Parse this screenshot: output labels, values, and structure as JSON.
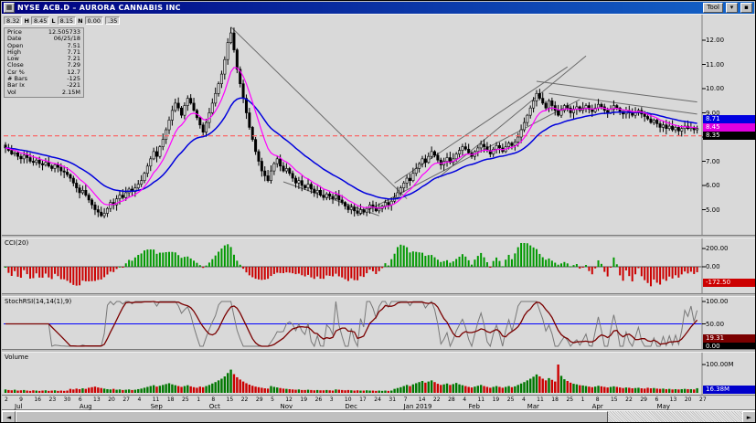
{
  "window": {
    "title": "NYSE ACB.D – AURORA CANNABIS INC",
    "buttons": [
      "Tool",
      "▾",
      "▪"
    ],
    "app_icon": "▦"
  },
  "quote_strip": {
    "cells": [
      {
        "t": "8.32",
        "box": true
      },
      {
        "t": "H",
        "box": false
      },
      {
        "t": "8.45",
        "box": true
      },
      {
        "t": "L",
        "box": false
      },
      {
        "t": "8.15",
        "box": true
      },
      {
        "t": "N",
        "box": false
      },
      {
        "t": "0.00",
        "box": true
      },
      {
        "t": ".35",
        "box": true
      }
    ]
  },
  "info_panel": {
    "rows": [
      [
        "Price",
        "12.505733"
      ],
      [
        "Date",
        "06/25/18"
      ],
      [
        "Open",
        "7.51"
      ],
      [
        "High",
        "7.71"
      ],
      [
        "Low",
        "7.21"
      ],
      [
        "Close",
        "7.29"
      ],
      [
        "Csr %",
        "12.7"
      ],
      [
        "# Bars",
        "-125"
      ],
      [
        "Bar Ix",
        "-221"
      ],
      [
        "Vol",
        "2.15M"
      ]
    ]
  },
  "panels": {
    "price": {
      "axis_labels": [
        {
          "v": 12,
          "t": "12.00"
        },
        {
          "v": 11,
          "t": "11.00"
        },
        {
          "v": 10,
          "t": "10.00"
        },
        {
          "v": 9,
          "t": "9.00"
        },
        {
          "v": 8,
          "t": "8.00"
        },
        {
          "v": 7,
          "t": "7.00"
        },
        {
          "v": 6,
          "t": "6.00"
        },
        {
          "v": 5,
          "t": "5.00"
        }
      ],
      "boxes": [
        {
          "v": 8.71,
          "t": "8.71",
          "bg": "#0000e0",
          "fg": "#ffffff"
        },
        {
          "v": 8.45,
          "t": "8.45",
          "bg": "#e000e0",
          "fg": "#ffffff"
        },
        {
          "v": 8.35,
          "t": "8.35",
          "bg": "#000000",
          "fg": "#ffffff"
        }
      ]
    },
    "cci": {
      "label": "CCI(20)",
      "axis_labels": [
        {
          "v": 200,
          "t": "200.00"
        },
        {
          "v": 0,
          "t": "0.00"
        }
      ],
      "boxes": [
        {
          "v": -172.5,
          "t": "-172.50",
          "bg": "#cc0000",
          "fg": "#ffffff"
        }
      ]
    },
    "stochrsi": {
      "label": "StochRSI(14,14(1),9)",
      "axis_labels": [
        {
          "v": 100,
          "t": "100.00"
        },
        {
          "v": 50,
          "t": "50.00"
        }
      ],
      "boxes": [
        {
          "v": 19.31,
          "t": "19.31",
          "bg": "#7a0000",
          "fg": "#ffffff"
        },
        {
          "v": 0,
          "t": "0.00",
          "bg": "#000000",
          "fg": "#ffffff"
        }
      ]
    },
    "volume": {
      "label": "Volume",
      "axis_labels": [
        {
          "v": 100,
          "t": "100.00M"
        }
      ],
      "boxes": [
        {
          "t": "16.38M",
          "bg": "#0000cc",
          "fg": "#ffffff"
        }
      ]
    }
  },
  "xaxis": {
    "weeks": [
      "2",
      "9",
      "16",
      "23",
      "30",
      "6",
      "13",
      "20",
      "27",
      "4",
      "11",
      "18",
      "25",
      "1",
      "8",
      "15",
      "22",
      "29",
      "5",
      "12",
      "19",
      "26",
      "3",
      "10",
      "17",
      "24",
      "31",
      "7",
      "14",
      "22",
      "28",
      "4",
      "11",
      "19",
      "25",
      "4",
      "11",
      "18",
      "25",
      "1",
      "8",
      "15",
      "22",
      "29",
      "6",
      "13",
      "20",
      "27"
    ],
    "months": [
      {
        "label": "Jul",
        "i": 0
      },
      {
        "label": "Aug",
        "i": 21
      },
      {
        "label": "Sep",
        "i": 44
      },
      {
        "label": "Oct",
        "i": 63
      },
      {
        "label": "Nov",
        "i": 86
      },
      {
        "label": "Dec",
        "i": 107
      },
      {
        "label": "Jan 2019",
        "i": 126
      },
      {
        "label": "Feb",
        "i": 147
      },
      {
        "label": "Mar",
        "i": 166
      },
      {
        "label": "Apr",
        "i": 187
      },
      {
        "label": "May",
        "i": 208
      }
    ]
  },
  "scrollbar": {
    "left_arrow": "◄",
    "right_arrow": "►"
  },
  "chart_data": {
    "type": "candlestick",
    "title": "NYSE ACB.D – AURORA CANNABIS INC",
    "x_range": "Jul 2018 – May 2019",
    "ylim": [
      4,
      13
    ],
    "price_axis_ticks": [
      12,
      11,
      10,
      9,
      8,
      7,
      6,
      5
    ],
    "closes": [
      7.55,
      7.45,
      7.3,
      7.35,
      7.2,
      7.1,
      7.25,
      7.15,
      7.0,
      6.95,
      7.05,
      6.9,
      6.85,
      6.95,
      6.8,
      6.7,
      6.85,
      6.75,
      6.6,
      6.55,
      6.45,
      6.3,
      6.1,
      5.9,
      5.7,
      5.8,
      5.6,
      5.4,
      5.2,
      5.0,
      4.9,
      4.75,
      4.85,
      5.05,
      5.3,
      5.2,
      5.45,
      5.6,
      5.5,
      5.7,
      5.85,
      5.75,
      5.9,
      6.05,
      6.2,
      6.5,
      6.8,
      7.1,
      7.4,
      7.2,
      7.6,
      7.9,
      8.3,
      8.7,
      9.1,
      9.4,
      9.2,
      8.9,
      9.3,
      9.6,
      9.4,
      9.1,
      8.8,
      8.5,
      8.2,
      8.6,
      9.0,
      9.4,
      9.8,
      10.2,
      10.6,
      11.2,
      11.9,
      12.3,
      11.6,
      10.8,
      10.2,
      9.6,
      9.0,
      8.4,
      7.9,
      7.4,
      7.0,
      6.6,
      6.4,
      6.2,
      6.6,
      6.9,
      7.1,
      6.8,
      6.6,
      6.7,
      6.5,
      6.3,
      6.1,
      6.2,
      6.0,
      5.9,
      6.05,
      5.85,
      5.7,
      5.8,
      5.6,
      5.5,
      5.65,
      5.55,
      5.45,
      5.6,
      5.4,
      5.3,
      5.15,
      5.0,
      5.1,
      4.95,
      4.85,
      5.0,
      4.9,
      5.05,
      5.2,
      5.1,
      4.95,
      5.05,
      5.15,
      5.3,
      5.2,
      5.35,
      5.5,
      5.7,
      5.9,
      6.1,
      6.3,
      6.2,
      6.5,
      6.7,
      6.9,
      7.1,
      6.95,
      7.2,
      7.4,
      7.25,
      7.05,
      6.85,
      7.0,
      7.15,
      6.95,
      7.1,
      7.3,
      7.45,
      7.6,
      7.5,
      7.35,
      7.2,
      7.4,
      7.55,
      7.7,
      7.6,
      7.45,
      7.3,
      7.5,
      7.65,
      7.55,
      7.4,
      7.6,
      7.75,
      7.65,
      7.8,
      8.0,
      8.3,
      8.6,
      8.9,
      9.2,
      9.5,
      9.8,
      9.6,
      9.4,
      9.2,
      9.5,
      9.3,
      9.1,
      8.9,
      9.1,
      9.3,
      9.2,
      9.0,
      9.15,
      9.25,
      9.1,
      9.2,
      9.3,
      9.15,
      9.05,
      9.2,
      9.35,
      9.25,
      9.1,
      9.0,
      9.15,
      9.3,
      9.2,
      9.05,
      8.95,
      9.1,
      9.0,
      8.9,
      9.0,
      9.1,
      8.95,
      8.85,
      8.75,
      8.6,
      8.7,
      8.55,
      8.4,
      8.5,
      8.35,
      8.45,
      8.3,
      8.4,
      8.25,
      8.35,
      8.45,
      8.35,
      8.4,
      8.3,
      8.35
    ],
    "volumes_millions": [
      12,
      10,
      9,
      11,
      8,
      9,
      10,
      8,
      7,
      9,
      8,
      7,
      8,
      9,
      7,
      8,
      9,
      7,
      8,
      7,
      8,
      14,
      12,
      15,
      13,
      16,
      14,
      18,
      20,
      22,
      19,
      17,
      15,
      13,
      12,
      14,
      11,
      12,
      10,
      11,
      12,
      10,
      11,
      13,
      15,
      18,
      21,
      24,
      27,
      22,
      25,
      28,
      31,
      34,
      30,
      27,
      24,
      21,
      24,
      27,
      23,
      20,
      18,
      22,
      20,
      24,
      28,
      33,
      38,
      44,
      50,
      58,
      70,
      82,
      66,
      55,
      47,
      40,
      34,
      29,
      25,
      22,
      20,
      18,
      16,
      15,
      24,
      21,
      19,
      17,
      15,
      14,
      13,
      12,
      11,
      12,
      10,
      10,
      11,
      10,
      9,
      10,
      9,
      9,
      10,
      9,
      8,
      12,
      11,
      10,
      9,
      10,
      9,
      8,
      9,
      8,
      8,
      9,
      8,
      8,
      7,
      8,
      7,
      8,
      7,
      8,
      14,
      17,
      20,
      24,
      28,
      24,
      30,
      34,
      38,
      42,
      36,
      40,
      44,
      38,
      32,
      28,
      30,
      33,
      28,
      31,
      35,
      30,
      27,
      24,
      21,
      19,
      22,
      25,
      28,
      24,
      21,
      18,
      21,
      24,
      21,
      18,
      21,
      24,
      20,
      23,
      28,
      33,
      38,
      44,
      50,
      57,
      65,
      58,
      50,
      44,
      52,
      46,
      40,
      100,
      60,
      48,
      42,
      36,
      32,
      30,
      27,
      26,
      24,
      22,
      20,
      22,
      25,
      23,
      21,
      19,
      21,
      23,
      21,
      19,
      17,
      19,
      18,
      16,
      17,
      18,
      16,
      15,
      18,
      16,
      17,
      15,
      14,
      15,
      13,
      14,
      12,
      13,
      12,
      13,
      14,
      13,
      13,
      12,
      16.38
    ],
    "overlays": {
      "ema_fast": 9,
      "ema_slow": 26
    },
    "horizontal_ref": {
      "value": 8.05,
      "color": "#ff5a5a",
      "style": "dashed"
    },
    "trend_lines": [
      {
        "i1": 73,
        "p1": 12.55,
        "i2": 130,
        "p2": 5.45
      },
      {
        "i1": 90,
        "p1": 6.15,
        "i2": 121,
        "p2": 4.75
      },
      {
        "i1": 114,
        "p1": 4.75,
        "i2": 186,
        "p2": 9.55
      },
      {
        "i1": 126,
        "p1": 6.1,
        "i2": 182,
        "p2": 10.9
      },
      {
        "i1": 140,
        "p1": 6.3,
        "i2": 188,
        "p2": 11.35
      },
      {
        "i1": 172,
        "p1": 10.3,
        "i2": 224,
        "p2": 9.45
      },
      {
        "i1": 176,
        "p1": 9.8,
        "i2": 224,
        "p2": 8.95
      }
    ],
    "indicators": [
      {
        "name": "CCI(20)",
        "type": "histogram",
        "range": [
          -260,
          260
        ],
        "last": -172.5
      },
      {
        "name": "StochRSI(14,14(1),9)",
        "type": "line",
        "range": [
          0,
          100
        ],
        "midline": 50,
        "last": 19.31
      },
      {
        "name": "Volume",
        "type": "bars",
        "unit": "M",
        "max_label": 100,
        "last": 16.38
      }
    ]
  }
}
